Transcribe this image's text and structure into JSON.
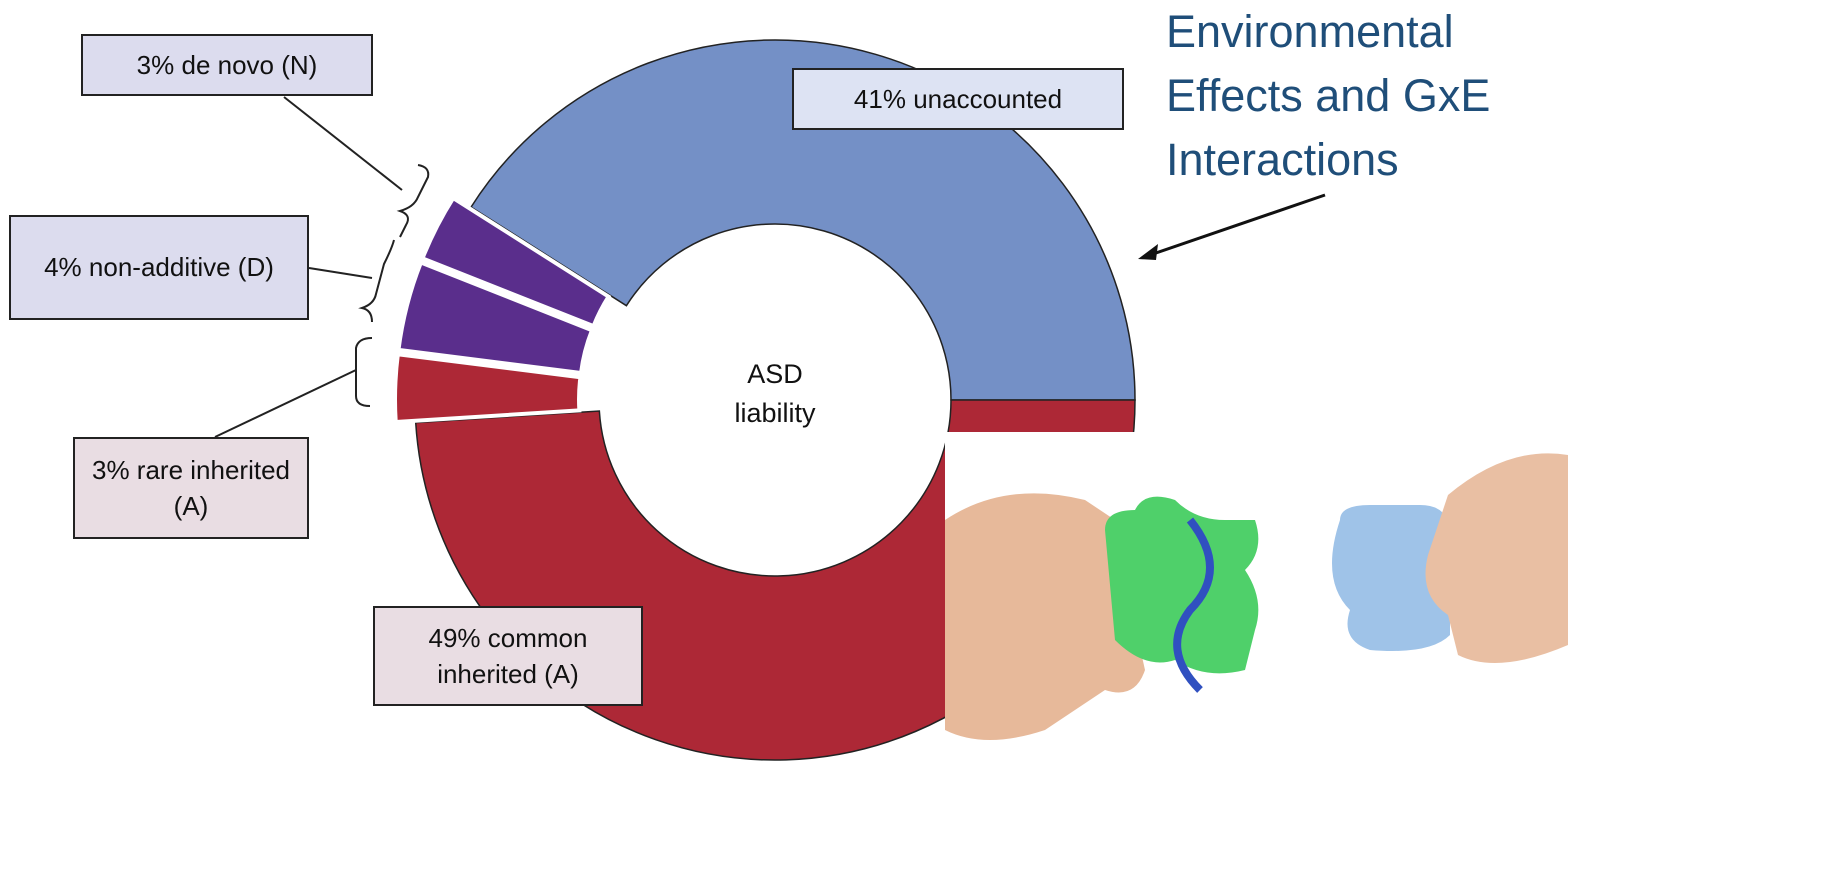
{
  "chart_data": {
    "type": "pie",
    "center_label": "ASD liability",
    "categories": [
      "unaccounted",
      "common inherited (A)",
      "rare inherited (A)",
      "non-additive (D)",
      "de novo (N)"
    ],
    "values": [
      41,
      49,
      3,
      4,
      3
    ],
    "value_labels": [
      "41%",
      "49%",
      "3%",
      "4%",
      "3%"
    ],
    "colors": [
      "#7490c6",
      "#ad2836",
      "#ad2836",
      "#5a2e8c",
      "#5a2e8c"
    ],
    "annotation": "Environmental Effects and GxE Interactions"
  }
}
